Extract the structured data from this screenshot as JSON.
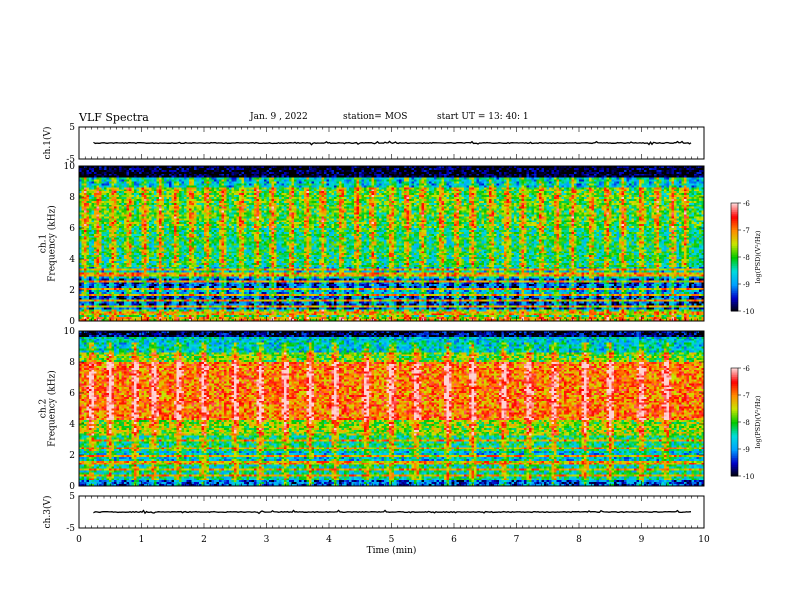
{
  "header": {
    "title": "VLF Spectra",
    "date": "Jan. 9 , 2022",
    "station": "station= MOS",
    "start": "start UT = 13: 40: 1"
  },
  "colors": {
    "ink": "#000000",
    "waveform": "#000000",
    "noise_floor": "#000060",
    "colormap": [
      "#000000",
      "#0000c8",
      "#00a0ff",
      "#00dcdc",
      "#00c800",
      "#c8e600",
      "#ff8c00",
      "#ff0000",
      "#ffd2d2"
    ]
  },
  "chart_data": [
    {
      "type": "line",
      "panel": "waveform-ch1",
      "ylabel": "ch.1(V)",
      "ylim": [
        -5,
        5
      ],
      "yticks": [
        "5",
        "-5"
      ],
      "xlim": [
        0,
        10
      ],
      "note_level": 0
    },
    {
      "type": "heatmap",
      "panel": "spectrogram-ch1",
      "ylabel": "ch.1\nFrequency (kHz)",
      "ylim": [
        0,
        10
      ],
      "yticks": [
        "0",
        "2",
        "4",
        "6",
        "8",
        "10"
      ],
      "xlim": [
        0,
        10
      ],
      "colorbar": {
        "label": "log(PSD)(V²/Hz)",
        "range": [
          -10,
          -6
        ],
        "ticks": [
          "-6",
          "-7",
          "-8",
          "-9",
          "-10"
        ]
      },
      "bands": [
        {
          "from_khz": 9.3,
          "to_khz": 10,
          "level": -10
        },
        {
          "from_khz": 8.6,
          "to_khz": 9.3,
          "level": -8.8
        },
        {
          "from_khz": 6.0,
          "to_khz": 8.6,
          "level": -8.0
        },
        {
          "from_khz": 3.5,
          "to_khz": 6.0,
          "level": -8.3
        },
        {
          "from_khz": 2.8,
          "to_khz": 3.5,
          "level": -8.8
        },
        {
          "from_khz": 2.0,
          "to_khz": 2.8,
          "level": -9.5
        },
        {
          "from_khz": 1.6,
          "to_khz": 2.0,
          "level": -9.0
        },
        {
          "from_khz": 0.8,
          "to_khz": 1.6,
          "level": -9.6
        },
        {
          "from_khz": 0.3,
          "to_khz": 0.8,
          "level": -8.2
        },
        {
          "from_khz": 0,
          "to_khz": 0.3,
          "level": -7.5
        }
      ],
      "lines_khz": [
        0.5,
        0.9,
        1.3,
        1.7,
        2.1,
        2.6,
        3.0,
        3.3
      ],
      "bursts_min": [
        0.1,
        0.3,
        0.55,
        0.8,
        1.05,
        1.3,
        1.55,
        1.8,
        2.05,
        2.3,
        2.6,
        2.85,
        3.1,
        3.4,
        3.65,
        3.9,
        4.2,
        4.45,
        4.7,
        5.0,
        5.25,
        5.5,
        5.8,
        6.05,
        6.3,
        6.6,
        6.85,
        7.1,
        7.4,
        7.65,
        7.9,
        8.2,
        8.45,
        8.7,
        9.0,
        9.25,
        9.5,
        9.7
      ]
    },
    {
      "type": "heatmap",
      "panel": "spectrogram-ch2",
      "ylabel": "ch.2\nFrequency (kHz)",
      "ylim": [
        0,
        10
      ],
      "yticks": [
        "0",
        "2",
        "4",
        "6",
        "8",
        "10"
      ],
      "xlim": [
        0,
        10
      ],
      "colorbar": {
        "label": "log(PSD)(V²/Hz)",
        "range": [
          -10,
          -6
        ],
        "ticks": [
          "-6",
          "-7",
          "-8",
          "-9",
          "-10"
        ]
      },
      "bands": [
        {
          "from_khz": 9.6,
          "to_khz": 10,
          "level": -9.8
        },
        {
          "from_khz": 8.6,
          "to_khz": 9.6,
          "level": -8.6
        },
        {
          "from_khz": 8.0,
          "to_khz": 8.6,
          "level": -7.8
        },
        {
          "from_khz": 4.2,
          "to_khz": 8.0,
          "level": -6.9
        },
        {
          "from_khz": 3.2,
          "to_khz": 4.2,
          "level": -7.7
        },
        {
          "from_khz": 2.2,
          "to_khz": 3.2,
          "level": -8.3
        },
        {
          "from_khz": 1.4,
          "to_khz": 2.2,
          "level": -8.7
        },
        {
          "from_khz": 0.4,
          "to_khz": 1.4,
          "level": -8.4
        },
        {
          "from_khz": 0,
          "to_khz": 0.4,
          "level": -9.3
        }
      ],
      "lines_khz": [
        0.7,
        1.1,
        1.5,
        1.9,
        2.4,
        2.9
      ],
      "bursts_min": [
        0.2,
        0.5,
        0.9,
        1.2,
        1.6,
        2.0,
        2.5,
        2.9,
        3.3,
        3.7,
        4.1,
        4.6,
        5.0,
        5.4,
        5.9,
        6.3,
        6.8,
        7.2,
        7.6,
        8.1,
        8.5,
        9.0,
        9.4
      ]
    },
    {
      "type": "line",
      "panel": "waveform-ch3",
      "ylabel": "ch.3(V)",
      "ylim": [
        -5,
        5
      ],
      "yticks": [
        "5",
        "-5"
      ],
      "xlim": [
        0,
        10
      ],
      "note_level": 0
    }
  ],
  "xaxis": {
    "label": "Time (min)",
    "ticks": [
      "0",
      "1",
      "2",
      "3",
      "4",
      "5",
      "6",
      "7",
      "8",
      "9",
      "10"
    ]
  }
}
